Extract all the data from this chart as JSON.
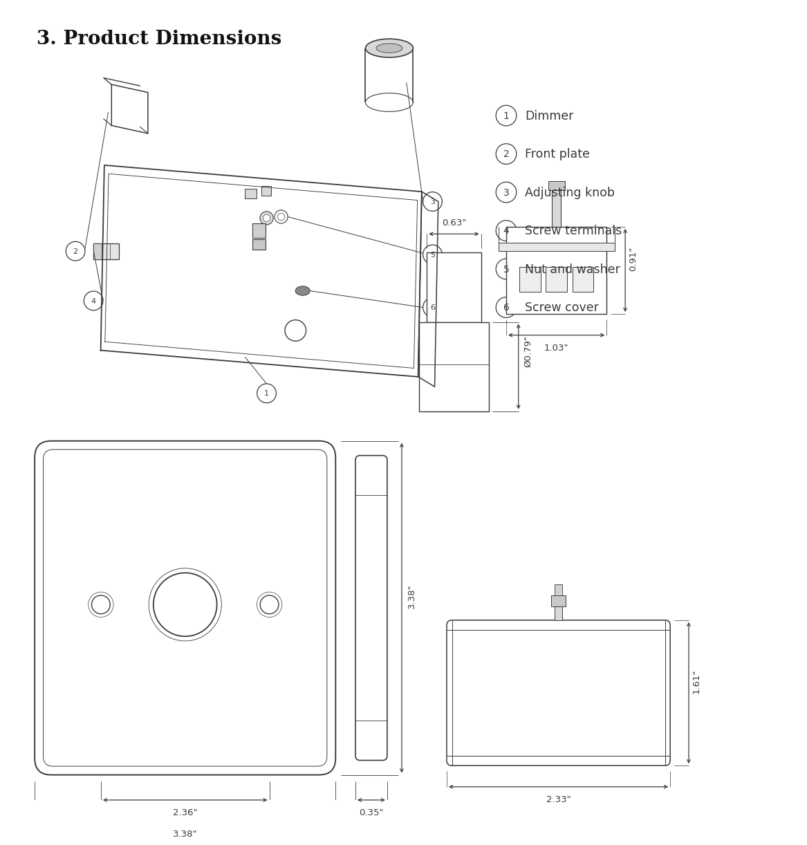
{
  "title": "3. Product Dimensions",
  "title_fontsize": 20,
  "bg_color": "#ffffff",
  "line_color": "#3a3a3a",
  "dim_color": "#3a3a3a",
  "text_color": "#3a3a3a",
  "legend_items": [
    {
      "num": "1",
      "label": "Dimmer"
    },
    {
      "num": "2",
      "label": "Front plate"
    },
    {
      "num": "3",
      "label": "Adjusting knob"
    },
    {
      "num": "4",
      "label": "Screw terminals"
    },
    {
      "num": "5",
      "label": "Nut and washer"
    },
    {
      "num": "6",
      "label": "Screw cover"
    }
  ],
  "dims": {
    "front_width": "2.36\"",
    "front_total_width": "3.38\"",
    "front_height": "3.38\"",
    "side_depth": "0.35\"",
    "side_full_height": "0.63\"",
    "side_knob_dia": "Ø0.79\"",
    "small_top_width": "1.03\"",
    "small_top_height": "0.91\"",
    "small_bot_width": "2.33\"",
    "small_bot_height": "1.61\""
  }
}
